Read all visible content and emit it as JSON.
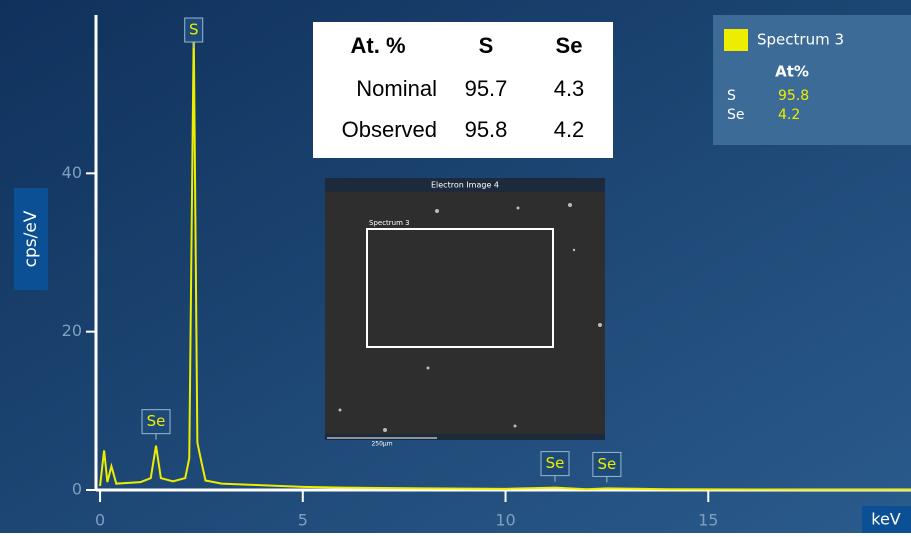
{
  "chart_data": {
    "type": "line",
    "y_label": "cps/eV",
    "x_label": "keV",
    "xlim": [
      -0.1,
      20
    ],
    "ylim": [
      0,
      60
    ],
    "xticks": [
      0,
      5,
      10,
      15
    ],
    "yticks": [
      0,
      20,
      40
    ],
    "x": [
      0,
      0.1,
      0.18,
      0.28,
      0.4,
      0.7,
      1.0,
      1.25,
      1.38,
      1.5,
      1.8,
      2.1,
      2.2,
      2.31,
      2.4,
      2.46,
      2.6,
      3.0,
      4,
      5,
      6,
      8,
      10,
      11.22,
      12,
      12.5,
      14,
      17,
      20
    ],
    "series": [
      {
        "name": "Spectrum 3",
        "color": "#eded00",
        "values": [
          0.5,
          5,
          1,
          3,
          0.8,
          0.9,
          1.0,
          1.5,
          5.6,
          1.5,
          1.1,
          1.5,
          4,
          58,
          6,
          4.5,
          1.2,
          0.8,
          0.6,
          0.4,
          0.3,
          0.2,
          0.15,
          0.3,
          0.1,
          0.2,
          0.1,
          0.05,
          0.03
        ]
      }
    ],
    "peak_labels": [
      {
        "label": "S",
        "x": 2.31
      },
      {
        "label": "Se",
        "x": 1.38
      },
      {
        "label": "Se",
        "x": 11.22
      },
      {
        "label": "Se",
        "x": 12.5
      }
    ],
    "composition_table": {
      "header": [
        "At. %",
        "S",
        "Se"
      ],
      "rows": [
        [
          "Nominal",
          95.7,
          4.3
        ],
        [
          "Observed",
          95.8,
          4.2
        ]
      ]
    },
    "legend_composition": {
      "header": "At%",
      "rows": [
        [
          "S",
          95.8
        ],
        [
          "Se",
          4.2
        ]
      ]
    },
    "inset": {
      "title": "Electron Image 4",
      "region": "Spectrum 3",
      "scale_bar": "250µm"
    }
  }
}
